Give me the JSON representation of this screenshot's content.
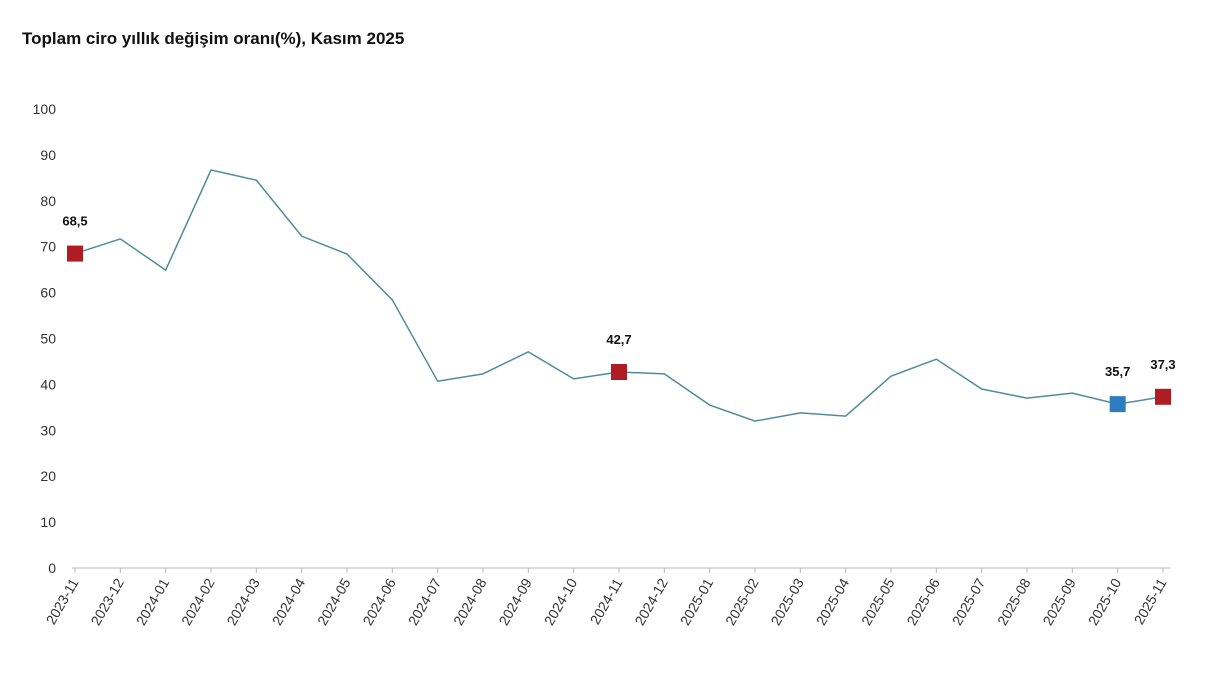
{
  "chart_data": {
    "type": "line",
    "title": "Toplam ciro yıllık değişim oranı(%), Kasım 2025",
    "categories": [
      "2023-11",
      "2023-12",
      "2024-01",
      "2024-02",
      "2024-03",
      "2024-04",
      "2024-05",
      "2024-06",
      "2024-07",
      "2024-08",
      "2024-09",
      "2024-10",
      "2024-11",
      "2024-12",
      "2025-01",
      "2025-02",
      "2025-03",
      "2025-04",
      "2025-05",
      "2025-06",
      "2025-07",
      "2025-08",
      "2025-09",
      "2025-10",
      "2025-11"
    ],
    "series": [
      {
        "color": "#4f8c99",
        "values": [
          68.5,
          71.7,
          64.9,
          86.7,
          84.5,
          72.3,
          68.4,
          58.4,
          40.7,
          42.3,
          47.1,
          41.2,
          42.7,
          42.3,
          35.5,
          32.0,
          33.8,
          33.1,
          41.8,
          45.5,
          39.0,
          37.0,
          38.1,
          35.7,
          37.3
        ],
        "value_labels": [
          "68,5",
          null,
          null,
          null,
          null,
          null,
          null,
          null,
          null,
          null,
          null,
          null,
          "42,7",
          null,
          null,
          null,
          null,
          null,
          null,
          null,
          null,
          null,
          null,
          "35,7",
          "37,3"
        ],
        "marker_colors": [
          "#b01c24",
          null,
          null,
          null,
          null,
          null,
          null,
          null,
          null,
          null,
          null,
          null,
          "#b01c24",
          null,
          null,
          null,
          null,
          null,
          null,
          null,
          null,
          null,
          null,
          "#2e7cc0",
          "#b01c24"
        ]
      }
    ],
    "ylim": [
      0,
      100
    ],
    "yticks": [
      0,
      10,
      20,
      30,
      40,
      50,
      60,
      70,
      80,
      90,
      100
    ],
    "grid": false
  }
}
